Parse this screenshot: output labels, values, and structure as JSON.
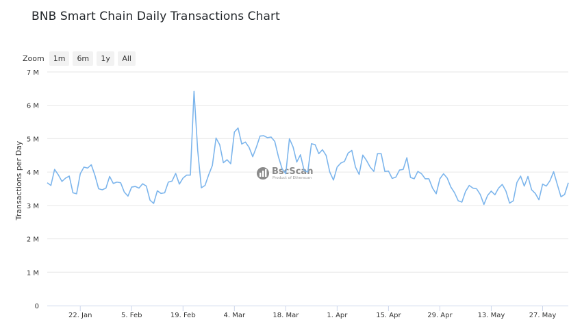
{
  "page": {
    "title": "BNB Smart Chain Daily Transactions Chart"
  },
  "zoom": {
    "label": "Zoom",
    "buttons": [
      "1m",
      "6m",
      "1y",
      "All"
    ]
  },
  "watermark": {
    "name": "BscScan",
    "tagline": "Product of Etherscan"
  },
  "chart_data": {
    "type": "line",
    "ylabel": "Transactions per Day",
    "ylim": [
      0,
      7000000
    ],
    "y_ticks": [
      {
        "value": 0,
        "label": "0"
      },
      {
        "value": 1000000,
        "label": "1 M"
      },
      {
        "value": 2000000,
        "label": "2 M"
      },
      {
        "value": 3000000,
        "label": "3 M"
      },
      {
        "value": 4000000,
        "label": "4 M"
      },
      {
        "value": 5000000,
        "label": "5 M"
      },
      {
        "value": 6000000,
        "label": "6 M"
      },
      {
        "value": 7000000,
        "label": "7 M"
      }
    ],
    "x_ticks": [
      {
        "label": "22. Jan",
        "day": 9
      },
      {
        "label": "5. Feb",
        "day": 23
      },
      {
        "label": "19. Feb",
        "day": 37
      },
      {
        "label": "4. Mar",
        "day": 51
      },
      {
        "label": "18. Mar",
        "day": 65
      },
      {
        "label": "1. Apr",
        "day": 79
      },
      {
        "label": "15. Apr",
        "day": 93
      },
      {
        "label": "29. Apr",
        "day": 107
      },
      {
        "label": "13. May",
        "day": 121
      },
      {
        "label": "27. May",
        "day": 135
      }
    ],
    "grid": true,
    "legend": "none",
    "line_color": "#7cb5ec",
    "series": [
      {
        "values": [
          3.68,
          3.6,
          4.08,
          3.92,
          3.72,
          3.82,
          3.88,
          3.38,
          3.35,
          3.95,
          4.15,
          4.12,
          4.22,
          3.9,
          3.5,
          3.47,
          3.52,
          3.87,
          3.66,
          3.7,
          3.68,
          3.4,
          3.28,
          3.55,
          3.57,
          3.52,
          3.65,
          3.58,
          3.16,
          3.06,
          3.44,
          3.36,
          3.38,
          3.7,
          3.73,
          3.96,
          3.64,
          3.82,
          3.91,
          3.91,
          6.42,
          4.65,
          3.53,
          3.6,
          3.92,
          4.2,
          5.02,
          4.82,
          4.28,
          4.37,
          4.25,
          5.2,
          5.32,
          4.84,
          4.9,
          4.74,
          4.46,
          4.75,
          5.08,
          5.09,
          5.03,
          5.05,
          4.92,
          4.46,
          4.1,
          3.95,
          5.0,
          4.75,
          4.3,
          4.52,
          4.05,
          4.0,
          4.85,
          4.82,
          4.55,
          4.67,
          4.5,
          4.0,
          3.76,
          4.15,
          4.27,
          4.32,
          4.57,
          4.65,
          4.15,
          3.93,
          4.51,
          4.35,
          4.15,
          4.02,
          4.55,
          4.55,
          4.02,
          4.03,
          3.81,
          3.85,
          4.06,
          4.08,
          4.43,
          3.84,
          3.8,
          4.02,
          3.95,
          3.8,
          3.8,
          3.52,
          3.35,
          3.8,
          3.95,
          3.82,
          3.55,
          3.38,
          3.14,
          3.1,
          3.42,
          3.6,
          3.52,
          3.5,
          3.33,
          3.03,
          3.3,
          3.43,
          3.32,
          3.52,
          3.63,
          3.43,
          3.07,
          3.14,
          3.69,
          3.88,
          3.58,
          3.87,
          3.47,
          3.36,
          3.17,
          3.64,
          3.58,
          3.74,
          4.01,
          3.63,
          3.26,
          3.33,
          3.68
        ]
      }
    ],
    "value_unit": "millions"
  }
}
